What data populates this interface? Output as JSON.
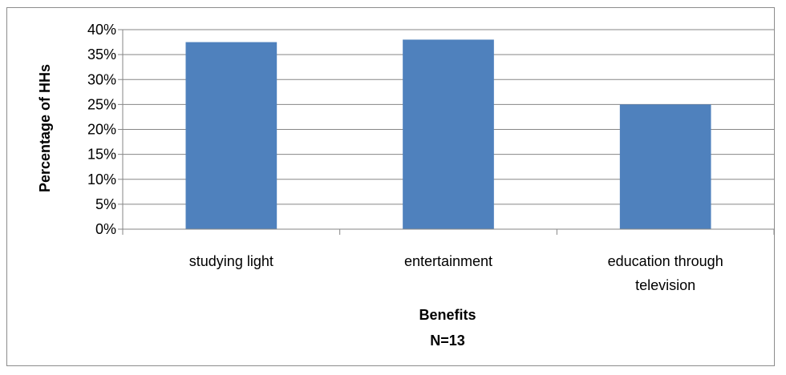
{
  "chart_data": {
    "type": "bar",
    "categories": [
      [
        "studying light"
      ],
      [
        "entertainment"
      ],
      [
        "education through",
        "television"
      ]
    ],
    "values": [
      0.375,
      0.38,
      0.25
    ],
    "ylabel": "Percentage of HHs",
    "xlabel": "Benefits",
    "xsublabel": "N=13",
    "ylim": [
      0,
      0.4
    ],
    "yticks": [
      "0%",
      "5%",
      "10%",
      "15%",
      "20%",
      "25%",
      "30%",
      "35%",
      "40%"
    ],
    "grid": true,
    "legend": "none",
    "colors": {
      "bar": "#4f81bd",
      "grid": "#868686",
      "axis": "#868686"
    }
  }
}
